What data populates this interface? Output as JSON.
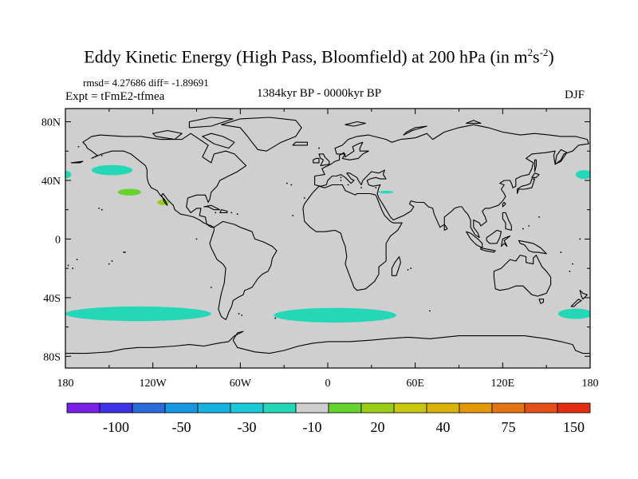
{
  "header": {
    "title_main": "Eddy Kinetic Energy (High Pass, Bloomfield) at 200 hPa (in m",
    "title_unit_m_exp": "2",
    "title_unit_s": "s",
    "title_unit_s_exp": "-2",
    "title_close": ")",
    "stats": "rmsd= 4.27686 diff= -1.89691",
    "experiment": "Expt = tFmE2-tfmea",
    "period": "1384kyr BP - 0000kyr BP",
    "season": "DJF"
  },
  "map": {
    "lat_labels": [
      "80N",
      "40N",
      "0",
      "40S",
      "80S"
    ],
    "lon_labels": [
      "180",
      "120W",
      "60W",
      "0",
      "60E",
      "120E",
      "180"
    ],
    "lat_values": [
      80,
      40,
      0,
      -40,
      -80
    ],
    "lon_values": [
      -180,
      -120,
      -60,
      0,
      60,
      120,
      180
    ]
  },
  "colors": {
    "ocean_background": "#cfcfcf",
    "coast": "#000000",
    "neg_light": "#23d7b7",
    "pos_light": "#66d22d",
    "pos_mid": "#99cd17"
  },
  "anomaly_patches": [
    {
      "name": "north-pacific-negative",
      "sign": "negative",
      "lon": -148,
      "lat": 47,
      "rlon": 14,
      "rlat": 3.5,
      "color": "#23d7b7"
    },
    {
      "name": "subtropical-pacific-positive",
      "sign": "positive",
      "lon": -136,
      "lat": 32,
      "rlon": 8,
      "rlat": 2.3,
      "color": "#66d22d"
    },
    {
      "name": "mexico-positive",
      "sign": "positive",
      "lon": -113,
      "lat": 25,
      "rlon": 4,
      "rlat": 1.8,
      "color": "#99cd17"
    },
    {
      "name": "middle-east-negative",
      "sign": "negative",
      "lon": 40,
      "lat": 32,
      "rlon": 5,
      "rlat": 0.9,
      "color": "#23d7b7"
    },
    {
      "name": "west-pacific-negative",
      "sign": "negative",
      "lon": 176,
      "lat": 44,
      "rlon": 6,
      "rlat": 3,
      "color": "#23d7b7"
    },
    {
      "name": "dateline-west-negative",
      "sign": "negative",
      "lon": -179,
      "lat": 44,
      "rlon": 3,
      "rlat": 2.5,
      "color": "#23d7b7"
    },
    {
      "name": "south-pacific-negative",
      "sign": "negative",
      "lon": -130,
      "lat": -51,
      "rlon": 50,
      "rlat": 5,
      "color": "#23d7b7"
    },
    {
      "name": "south-atlantic-negative",
      "sign": "negative",
      "lon": 5,
      "lat": -52,
      "rlon": 42,
      "rlat": 5,
      "color": "#23d7b7"
    },
    {
      "name": "southern-ocean-dateline-negative",
      "sign": "negative",
      "lon": 170,
      "lat": -51,
      "rlon": 12,
      "rlat": 3.5,
      "color": "#23d7b7"
    }
  ],
  "colorbar": {
    "colors": [
      "#7a1fe8",
      "#3c33e6",
      "#2b6ad9",
      "#1697e0",
      "#17b2e0",
      "#1cc9d8",
      "#23d7b7",
      "#cfcfcf",
      "#66d22d",
      "#99cd17",
      "#c6c70e",
      "#d9b405",
      "#e39704",
      "#e47410",
      "#e54f18",
      "#e42e10"
    ],
    "labels": [
      "-100",
      "-50",
      "-30",
      "-10",
      "20",
      "40",
      "75",
      "150"
    ],
    "label_boundary_index": [
      2,
      4,
      6,
      8,
      10,
      12,
      14,
      16
    ]
  }
}
